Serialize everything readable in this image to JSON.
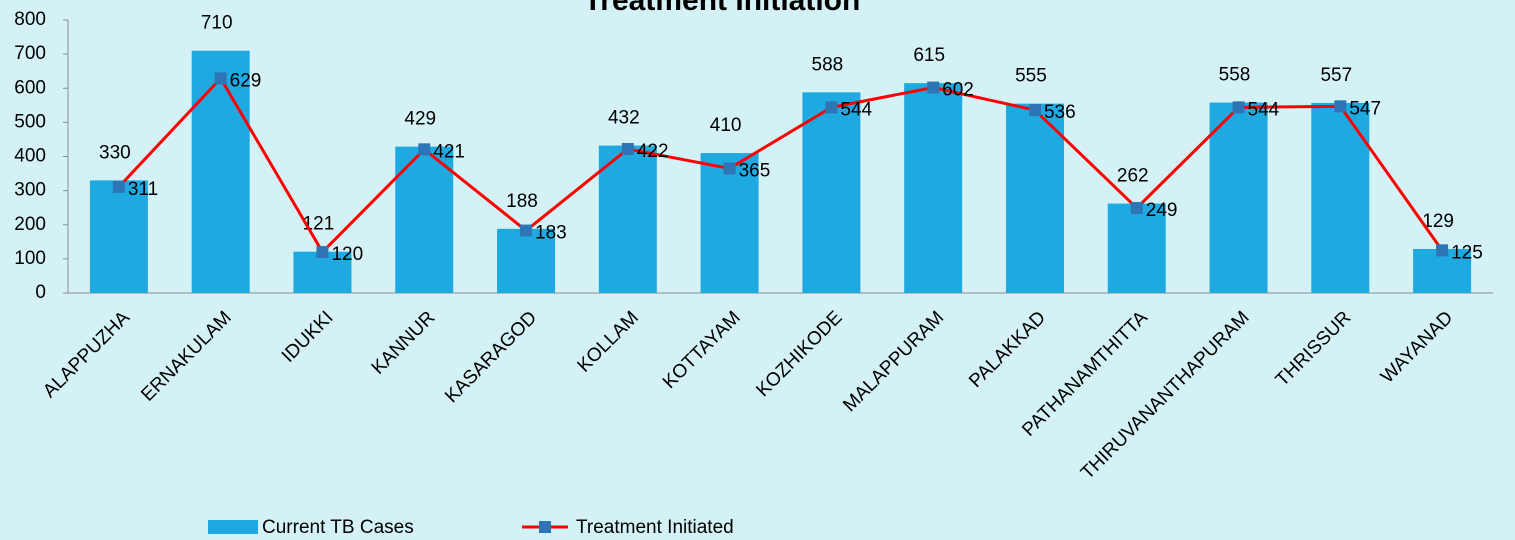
{
  "chart_data": {
    "type": "bar",
    "title": "Treatment Initiation",
    "categories": [
      "ALAPPUZHA",
      "ERNAKULAM",
      "IDUKKI",
      "KANNUR",
      "KASARAGOD",
      "KOLLAM",
      "KOTTAYAM",
      "KOZHIKODE",
      "MALAPPURAM",
      "PALAKKAD",
      "PATHANAMTHITTA",
      "THIRUVANANTHAPURAM",
      "THRISSUR",
      "WAYANAD"
    ],
    "series": [
      {
        "name": "Current TB Cases",
        "type": "bar",
        "color": "#1ea9e1",
        "values": [
          330,
          710,
          121,
          429,
          188,
          432,
          410,
          588,
          615,
          555,
          262,
          558,
          557,
          129
        ]
      },
      {
        "name": "Treatment Initiated",
        "type": "line",
        "color": "#ff0000",
        "marker_color": "#2e75b6",
        "values": [
          311,
          629,
          120,
          421,
          183,
          422,
          365,
          544,
          602,
          536,
          249,
          544,
          547,
          125
        ]
      }
    ],
    "ylim": [
      0,
      800
    ],
    "yticks": [
      0,
      100,
      200,
      300,
      400,
      500,
      600,
      700,
      800
    ],
    "grid": false,
    "legend": "bottom"
  }
}
